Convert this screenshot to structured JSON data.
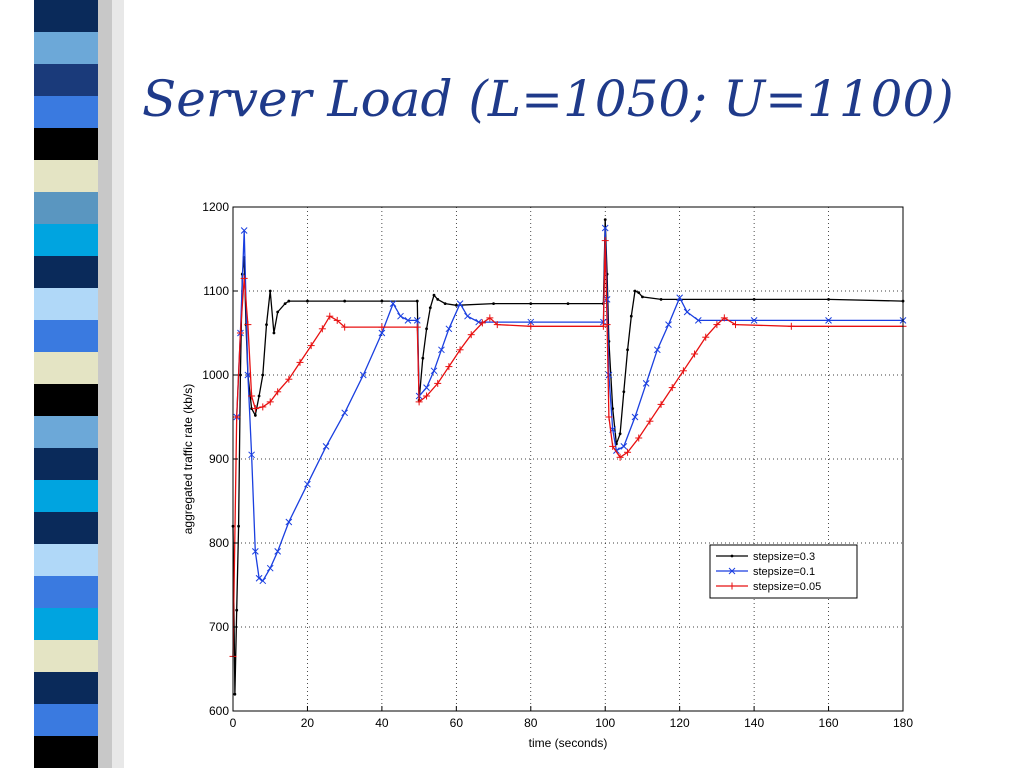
{
  "slide": {
    "title": "Server Load (L=1050; U=1100)"
  },
  "chart_data": {
    "type": "line",
    "xlabel": "time (seconds)",
    "ylabel": "aggregated traffic rate (kb/s)",
    "xlim": [
      0,
      180
    ],
    "ylim": [
      600,
      1200
    ],
    "xticks": [
      "0",
      "20",
      "40",
      "60",
      "80",
      "100",
      "120",
      "140",
      "160",
      "180"
    ],
    "yticks": [
      "600",
      "700",
      "800",
      "900",
      "1000",
      "1100",
      "1200"
    ],
    "grid": true,
    "legend_position": "lower-right",
    "series": [
      {
        "name": "stepsize=0.3",
        "color": "#000000",
        "marker": "dot",
        "points": [
          [
            0,
            820
          ],
          [
            0.5,
            620
          ],
          [
            1,
            720
          ],
          [
            1.5,
            820
          ],
          [
            2,
            1000
          ],
          [
            2.5,
            1120
          ],
          [
            3,
            1140
          ],
          [
            3.5,
            1060
          ],
          [
            4,
            1000
          ],
          [
            5,
            960
          ],
          [
            6,
            952
          ],
          [
            7,
            975
          ],
          [
            8,
            1000
          ],
          [
            9,
            1060
          ],
          [
            10,
            1100
          ],
          [
            11,
            1050
          ],
          [
            12,
            1075
          ],
          [
            14,
            1085
          ],
          [
            15,
            1088
          ],
          [
            20,
            1088
          ],
          [
            30,
            1088
          ],
          [
            40,
            1088
          ],
          [
            49.5,
            1088
          ],
          [
            50,
            970
          ],
          [
            51,
            1020
          ],
          [
            52,
            1055
          ],
          [
            53,
            1080
          ],
          [
            54,
            1095
          ],
          [
            55,
            1090
          ],
          [
            57,
            1085
          ],
          [
            60,
            1083
          ],
          [
            70,
            1085
          ],
          [
            80,
            1085
          ],
          [
            90,
            1085
          ],
          [
            99.5,
            1085
          ],
          [
            100,
            1185
          ],
          [
            100.5,
            1120
          ],
          [
            101,
            1040
          ],
          [
            102,
            960
          ],
          [
            103,
            918
          ],
          [
            104,
            930
          ],
          [
            105,
            980
          ],
          [
            106,
            1030
          ],
          [
            107,
            1070
          ],
          [
            108,
            1100
          ],
          [
            109,
            1098
          ],
          [
            110,
            1093
          ],
          [
            115,
            1090
          ],
          [
            120,
            1090
          ],
          [
            140,
            1090
          ],
          [
            160,
            1090
          ],
          [
            180,
            1088
          ]
        ]
      },
      {
        "name": "stepsize=0.1",
        "color": "#1a3fe0",
        "marker": "x",
        "points": [
          [
            1,
            950
          ],
          [
            2,
            1050
          ],
          [
            3,
            1172
          ],
          [
            4,
            1000
          ],
          [
            5,
            905
          ],
          [
            6,
            790
          ],
          [
            7,
            758
          ],
          [
            8,
            755
          ],
          [
            10,
            770
          ],
          [
            12,
            790
          ],
          [
            15,
            825
          ],
          [
            20,
            870
          ],
          [
            25,
            915
          ],
          [
            30,
            955
          ],
          [
            35,
            1000
          ],
          [
            40,
            1050
          ],
          [
            43,
            1085
          ],
          [
            45,
            1070
          ],
          [
            47,
            1065
          ],
          [
            49.5,
            1065
          ],
          [
            50,
            975
          ],
          [
            52,
            985
          ],
          [
            54,
            1005
          ],
          [
            56,
            1030
          ],
          [
            58,
            1055
          ],
          [
            61,
            1085
          ],
          [
            63,
            1070
          ],
          [
            66,
            1063
          ],
          [
            80,
            1063
          ],
          [
            99.5,
            1063
          ],
          [
            100,
            1175
          ],
          [
            100.5,
            1090
          ],
          [
            101,
            1000
          ],
          [
            102,
            935
          ],
          [
            103,
            910
          ],
          [
            105,
            915
          ],
          [
            108,
            950
          ],
          [
            111,
            990
          ],
          [
            114,
            1030
          ],
          [
            117,
            1060
          ],
          [
            120,
            1092
          ],
          [
            122,
            1075
          ],
          [
            125,
            1065
          ],
          [
            140,
            1065
          ],
          [
            160,
            1065
          ],
          [
            180,
            1065
          ]
        ]
      },
      {
        "name": "stepsize=0.05",
        "color": "#e81010",
        "marker": "plus",
        "points": [
          [
            0,
            665
          ],
          [
            1,
            950
          ],
          [
            2,
            1050
          ],
          [
            3,
            1115
          ],
          [
            4,
            1060
          ],
          [
            5,
            975
          ],
          [
            6,
            960
          ],
          [
            8,
            962
          ],
          [
            10,
            968
          ],
          [
            12,
            980
          ],
          [
            15,
            995
          ],
          [
            18,
            1015
          ],
          [
            21,
            1035
          ],
          [
            24,
            1055
          ],
          [
            26,
            1070
          ],
          [
            28,
            1065
          ],
          [
            30,
            1057
          ],
          [
            40,
            1057
          ],
          [
            49.5,
            1057
          ],
          [
            50,
            968
          ],
          [
            52,
            975
          ],
          [
            55,
            990
          ],
          [
            58,
            1010
          ],
          [
            61,
            1030
          ],
          [
            64,
            1048
          ],
          [
            67,
            1062
          ],
          [
            69,
            1068
          ],
          [
            71,
            1060
          ],
          [
            80,
            1058
          ],
          [
            99.5,
            1058
          ],
          [
            100,
            1160
          ],
          [
            100.5,
            1060
          ],
          [
            101,
            950
          ],
          [
            102,
            915
          ],
          [
            104,
            902
          ],
          [
            106,
            908
          ],
          [
            109,
            925
          ],
          [
            112,
            945
          ],
          [
            115,
            965
          ],
          [
            118,
            985
          ],
          [
            121,
            1005
          ],
          [
            124,
            1025
          ],
          [
            127,
            1045
          ],
          [
            130,
            1060
          ],
          [
            132,
            1068
          ],
          [
            135,
            1060
          ],
          [
            150,
            1058
          ],
          [
            180,
            1058
          ]
        ]
      }
    ]
  },
  "sidebar": {
    "stripe_colors": [
      "#0a2a5a",
      "#6ca8d8",
      "#1a3a7a",
      "#3a7ae0",
      "#000000",
      "#e4e4c4",
      "#5a96c0",
      "#00a4e0",
      "#0a2a5a",
      "#b0d8f8",
      "#3a7ae0",
      "#e4e4c4",
      "#000000",
      "#6ca8d8",
      "#0a2a5a",
      "#00a4e0",
      "#0a2a5a",
      "#b0d8f8",
      "#3a7ae0",
      "#00a4e0",
      "#e4e4c4",
      "#0a2a5a",
      "#3a7ae0",
      "#000000"
    ]
  }
}
